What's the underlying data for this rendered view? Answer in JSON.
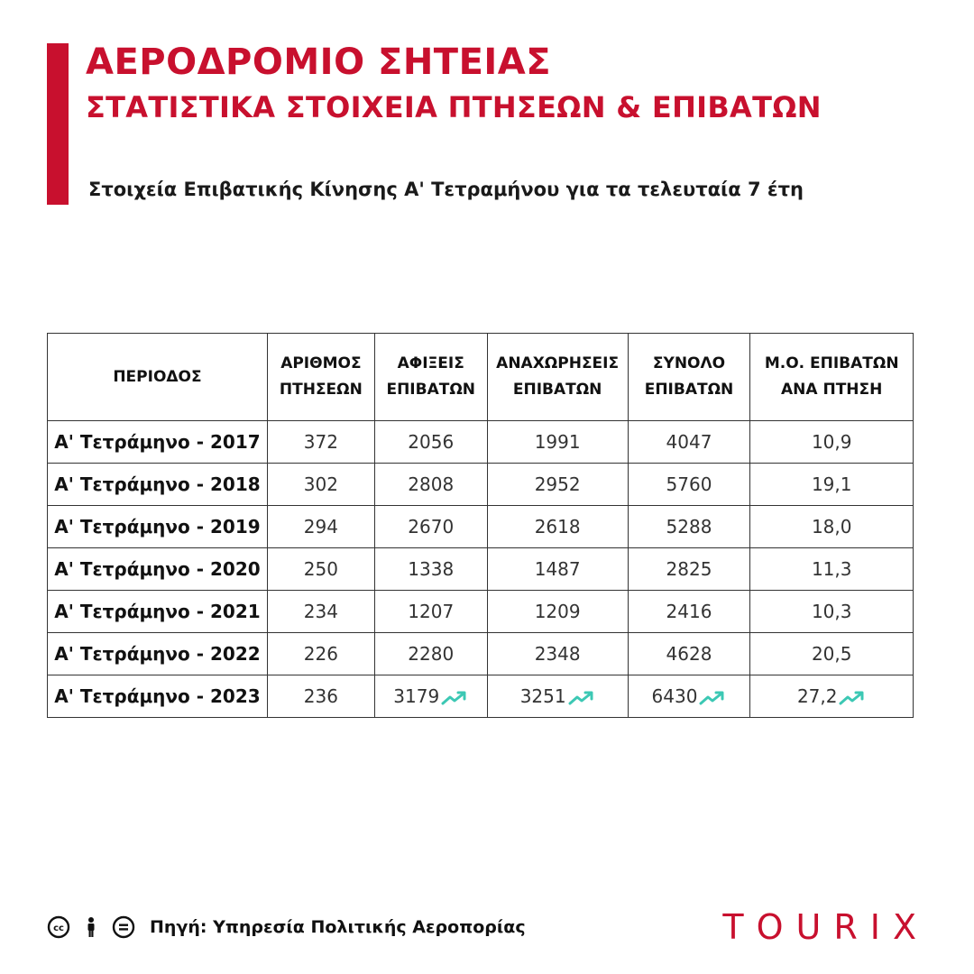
{
  "colors": {
    "accent": "#c8102e",
    "trend": "#3cc8b4"
  },
  "header": {
    "title": "ΑΕΡΟΔΡΟΜΙΟ ΣΗΤΕΙΑΣ",
    "subtitle": "ΣΤΑΤΙΣΤΙΚΑ ΣΤΟΙΧΕΙΑ ΠΤΗΣΕΩΝ & ΕΠΙΒΑΤΩΝ",
    "tagline": "Στοιχεία Επιβατικής Κίνησης Α'  Τετραμήνου για τα τελευταία 7 έτη"
  },
  "table": {
    "headers": [
      {
        "line1": "ΠΕΡΙΟΔΟΣ",
        "line2": ""
      },
      {
        "line1": "ΑΡΙΘΜΟΣ",
        "line2": "ΠΤΗΣΕΩΝ"
      },
      {
        "line1": "ΑΦΙΞΕΙΣ",
        "line2": "ΕΠΙΒΑΤΩΝ"
      },
      {
        "line1": "ΑΝΑΧΩΡΗΣΕΙΣ",
        "line2": "ΕΠΙΒΑΤΩΝ"
      },
      {
        "line1": "ΣΥΝΟΛΟ",
        "line2": "ΕΠΙΒΑΤΩΝ"
      },
      {
        "line1": "Μ.Ο. ΕΠΙΒΑΤΩΝ",
        "line2": "ΑΝΑ ΠΤΗΣΗ"
      }
    ],
    "rows": [
      {
        "period": "Α' Τετράμηνο - 2017",
        "flights": "372",
        "arrivals": "2056",
        "departures": "1991",
        "total": "4047",
        "avg": "10,9"
      },
      {
        "period": "Α' Τετράμηνο - 2018",
        "flights": "302",
        "arrivals": "2808",
        "departures": "2952",
        "total": "5760",
        "avg": "19,1"
      },
      {
        "period": "Α' Τετράμηνο - 2019",
        "flights": "294",
        "arrivals": "2670",
        "departures": "2618",
        "total": "5288",
        "avg": "18,0"
      },
      {
        "period": "Α' Τετράμηνο - 2020",
        "flights": "250",
        "arrivals": "1338",
        "departures": "1487",
        "total": "2825",
        "avg": "11,3"
      },
      {
        "period": "Α' Τετράμηνο - 2021",
        "flights": "234",
        "arrivals": "1207",
        "departures": "1209",
        "total": "2416",
        "avg": "10,3"
      },
      {
        "period": "Α' Τετράμηνο - 2022",
        "flights": "226",
        "arrivals": "2280",
        "departures": "2348",
        "total": "4628",
        "avg": "20,5"
      },
      {
        "period": "Α' Τετράμηνο - 2023",
        "flights": "236",
        "arrivals": "3179",
        "departures": "3251",
        "total": "6430",
        "avg": "27,2"
      }
    ],
    "trend_icon": "trending-up-icon"
  },
  "footer": {
    "license_icons": [
      "cc-icon",
      "by-person-icon",
      "nd-equals-icon"
    ],
    "source": "Πηγή: Υπηρεσία Πολιτικής Αεροπορίας",
    "brand": "TOURIX"
  }
}
